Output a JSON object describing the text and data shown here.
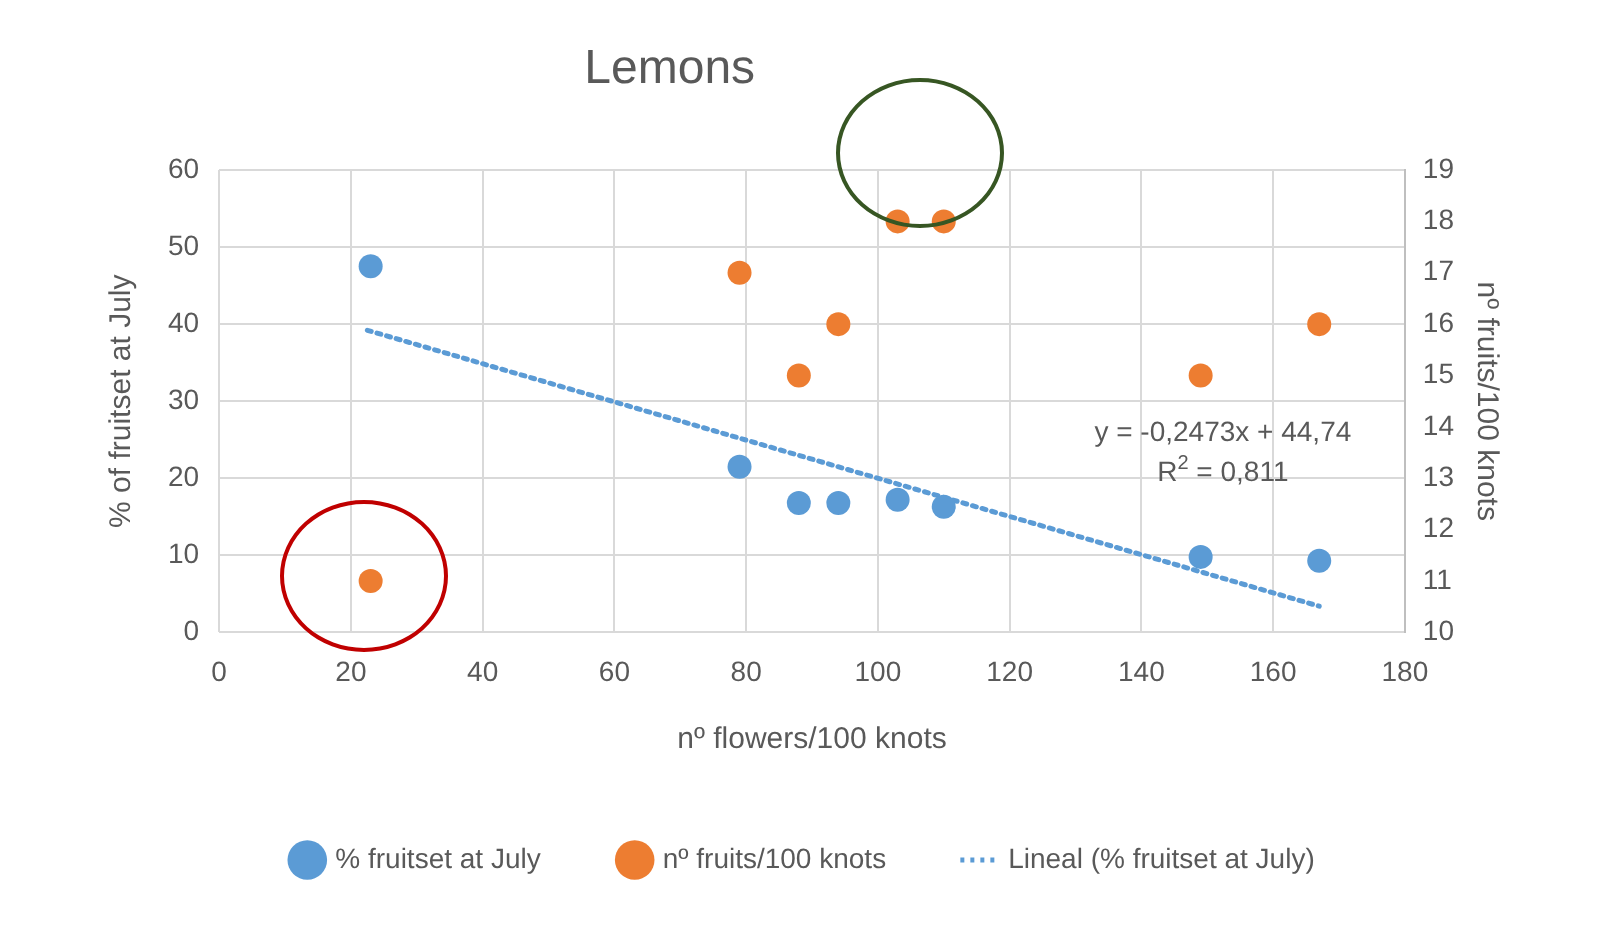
{
  "chart_data": {
    "type": "scatter",
    "title": "Lemons",
    "xlabel": "nº flowers/100 knots",
    "ylabel": "% of fruitset at July",
    "y2label": "nº fruits/100 knots",
    "series": [
      {
        "name": "% fruitset at July",
        "color": "#5b9bd5",
        "x": [
          23,
          79,
          88,
          94,
          103,
          110,
          149,
          167
        ],
        "values": [
          47.5,
          21.5,
          16.8,
          16.8,
          17.2,
          16.3,
          9.8,
          9.3
        ]
      },
      {
        "name": "nº fruits/100 knots",
        "color": "#ed7d31",
        "axis": "y2",
        "x": [
          23,
          79,
          88,
          94,
          103,
          110,
          149,
          167
        ],
        "values": [
          11,
          17,
          15,
          16,
          18,
          18,
          15,
          16
        ]
      },
      {
        "name": "Lineal (% fruitset at July)",
        "type": "line",
        "color": "#5b9bd5",
        "line_style": "dotted",
        "marker": "none",
        "x": [
          22.5,
          167
        ],
        "values": [
          39.2,
          3.4
        ]
      }
    ],
    "annotations": [
      "y = -0,2473x + 44,74",
      "R$^{2}$ = 0,811"
    ],
    "xlim": [
      0,
      180
    ],
    "xticks": [
      0,
      20,
      40,
      60,
      80,
      100,
      120,
      140,
      160,
      180
    ],
    "ylim": [
      0,
      60
    ],
    "yticks": [
      0,
      10,
      20,
      30,
      40,
      50,
      60
    ],
    "y2lim": [
      10,
      19
    ],
    "y2ticks": [
      10,
      11,
      12,
      13,
      14,
      15,
      16,
      17,
      18,
      19
    ],
    "grid": true,
    "legend": "bottom",
    "marker": "circle"
  }
}
